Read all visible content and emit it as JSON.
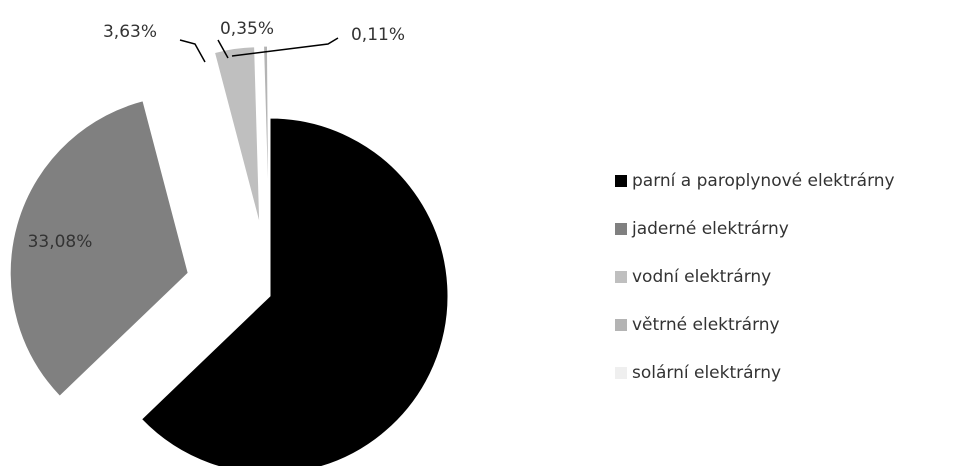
{
  "chart_data": {
    "type": "pie",
    "categories": [
      "parní a paroplynové elektrárny",
      "jaderné elektrárny",
      "vodní elektrárny",
      "větrné elektrárny",
      "solární elektrárny"
    ],
    "values": [
      62.83,
      33.08,
      3.63,
      0.35,
      0.11
    ],
    "value_labels": [
      null,
      "33,08%",
      "3,63%",
      "0,35%",
      "0,11%"
    ],
    "colors": [
      "#000000",
      "#808080",
      "#bfbfbf",
      "#b4b4b4",
      "#efefef"
    ],
    "legend": "right"
  }
}
